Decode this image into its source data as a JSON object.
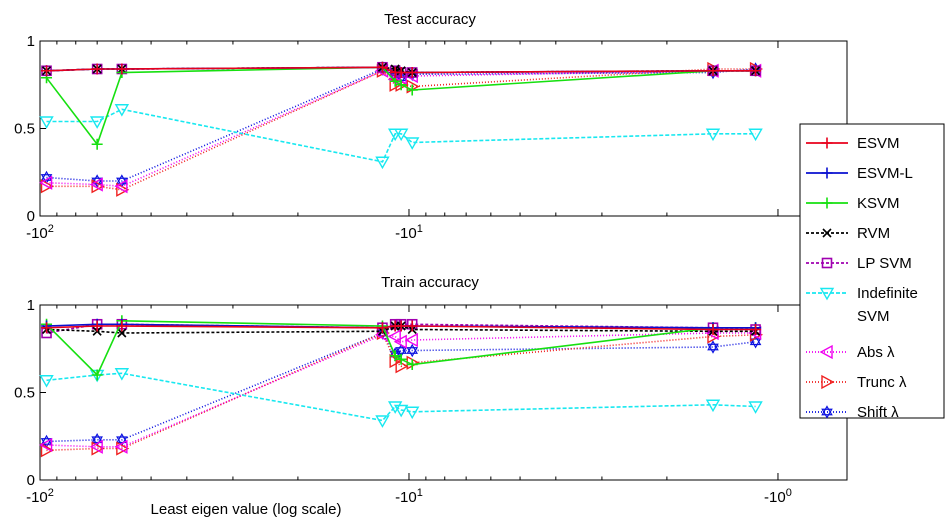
{
  "figure": {
    "x_axis_label": "Least eigen value (log scale)"
  },
  "legend": [
    {
      "label": "ESVM",
      "color": "#e8001c",
      "dash": "",
      "marker": "plus"
    },
    {
      "label": "ESVM-L",
      "color": "#0a10d0",
      "dash": "",
      "marker": "plus"
    },
    {
      "label": "KSVM",
      "color": "#16e010",
      "dash": "",
      "marker": "plus"
    },
    {
      "label": "RVM",
      "color": "#000000",
      "dash": "3,2",
      "marker": "x"
    },
    {
      "label": "LP SVM",
      "color": "#a000b0",
      "dash": "3,2",
      "marker": "square"
    },
    {
      "label": "Indefinite",
      "label2": "SVM",
      "color": "#18e8f0",
      "dash": "4,2",
      "marker": "tri-down"
    },
    {
      "label": "Abs λ",
      "color": "#f000f0",
      "dash": "1,2",
      "marker": "tri-left"
    },
    {
      "label": "Trunc λ",
      "color": "#f02020",
      "dash": "1,2",
      "marker": "tri-right"
    },
    {
      "label": "Shift λ",
      "color": "#0a10e0",
      "dash": "1,2",
      "marker": "hexagram"
    }
  ],
  "chart_data": [
    {
      "type": "line",
      "title": "Test accuracy",
      "xlabel": "",
      "ylabel": "",
      "x_scale": "log (negative values)",
      "xlim": [
        -100,
        -0.65
      ],
      "ylim": [
        0,
        1
      ],
      "yticks": [
        "0",
        "0.5",
        "1"
      ],
      "xticks": [
        "-10^2",
        "-10^1"
      ],
      "x": [
        -96,
        -70,
        -60,
        -11.8,
        -10.9,
        -10.5,
        -9.8,
        -1.5,
        -1.15
      ],
      "series": [
        {
          "name": "ESVM",
          "values": [
            0.83,
            0.84,
            0.84,
            0.85,
            0.82,
            0.82,
            0.82,
            0.83,
            0.83
          ]
        },
        {
          "name": "ESVM-L",
          "values": [
            0.83,
            0.84,
            0.84,
            0.85,
            0.82,
            0.82,
            0.82,
            0.83,
            0.83
          ]
        },
        {
          "name": "KSVM",
          "values": [
            0.79,
            0.41,
            0.82,
            0.85,
            0.77,
            0.75,
            0.72,
            0.83,
            0.83
          ]
        },
        {
          "name": "RVM",
          "values": [
            0.83,
            0.84,
            0.84,
            0.85,
            0.84,
            0.83,
            0.82,
            0.83,
            0.83
          ]
        },
        {
          "name": "LP SVM",
          "values": [
            0.83,
            0.84,
            0.84,
            0.85,
            0.83,
            0.82,
            0.82,
            0.83,
            0.83
          ]
        },
        {
          "name": "Indefinite SVM",
          "values": [
            0.54,
            0.54,
            0.61,
            0.31,
            0.47,
            0.47,
            0.42,
            0.47,
            0.47
          ]
        },
        {
          "name": "Abs λ",
          "values": [
            0.19,
            0.18,
            0.17,
            0.83,
            0.78,
            0.79,
            0.8,
            0.83,
            0.83
          ]
        },
        {
          "name": "Trunc λ",
          "values": [
            0.17,
            0.17,
            0.15,
            0.83,
            0.75,
            0.75,
            0.74,
            0.84,
            0.84
          ]
        },
        {
          "name": "Shift λ",
          "values": [
            0.22,
            0.2,
            0.2,
            0.84,
            0.8,
            0.79,
            0.81,
            0.82,
            0.84
          ]
        }
      ]
    },
    {
      "type": "line",
      "title": "Train accuracy",
      "xlabel": "Least eigen value (log scale)",
      "ylabel": "",
      "x_scale": "log (negative values)",
      "xlim": [
        -100,
        -0.65
      ],
      "ylim": [
        0,
        1
      ],
      "yticks": [
        "0",
        "0.5",
        "1"
      ],
      "xticks": [
        "-10^2",
        "-10^1",
        "-10^0"
      ],
      "x": [
        -96,
        -70,
        -60,
        -11.8,
        -10.9,
        -10.5,
        -9.8,
        -1.5,
        -1.15
      ],
      "series": [
        {
          "name": "ESVM",
          "values": [
            0.87,
            0.88,
            0.88,
            0.87,
            0.88,
            0.88,
            0.88,
            0.86,
            0.86
          ]
        },
        {
          "name": "ESVM-L",
          "values": [
            0.88,
            0.89,
            0.89,
            0.87,
            0.88,
            0.88,
            0.88,
            0.87,
            0.87
          ]
        },
        {
          "name": "KSVM",
          "values": [
            0.89,
            0.6,
            0.91,
            0.88,
            0.71,
            0.69,
            0.66,
            0.87,
            0.87
          ]
        },
        {
          "name": "RVM",
          "values": [
            0.86,
            0.85,
            0.84,
            0.85,
            0.88,
            0.88,
            0.86,
            0.85,
            0.85
          ]
        },
        {
          "name": "LP SVM",
          "values": [
            0.84,
            0.89,
            0.89,
            0.87,
            0.89,
            0.89,
            0.89,
            0.87,
            0.86
          ]
        },
        {
          "name": "Indefinite SVM",
          "values": [
            0.57,
            0.6,
            0.61,
            0.34,
            0.42,
            0.4,
            0.39,
            0.43,
            0.42
          ]
        },
        {
          "name": "Abs λ",
          "values": [
            0.2,
            0.19,
            0.19,
            0.83,
            0.82,
            0.79,
            0.8,
            0.84,
            0.84
          ]
        },
        {
          "name": "Trunc λ",
          "values": [
            0.17,
            0.18,
            0.18,
            0.84,
            0.68,
            0.65,
            0.67,
            0.82,
            0.83
          ]
        },
        {
          "name": "Shift λ",
          "values": [
            0.22,
            0.23,
            0.23,
            0.84,
            0.72,
            0.74,
            0.74,
            0.76,
            0.79
          ]
        }
      ]
    }
  ]
}
